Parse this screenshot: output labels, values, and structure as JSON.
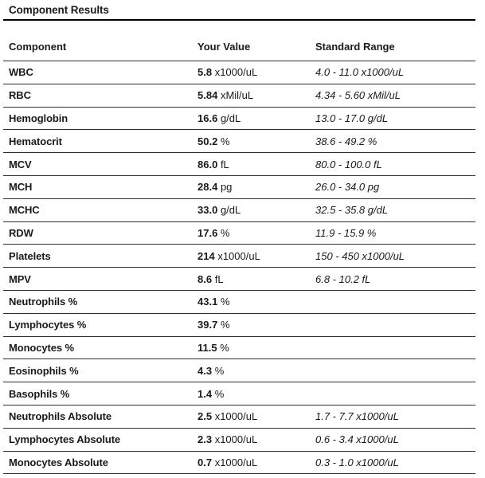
{
  "page_title": "Component Results",
  "table": {
    "columns": [
      "Component",
      "Your Value",
      "Standard Range"
    ],
    "rows": [
      {
        "component": "WBC",
        "value": "5.8",
        "unit": "x1000/uL",
        "range": "4.0 - 11.0 x1000/uL"
      },
      {
        "component": "RBC",
        "value": "5.84",
        "unit": "xMil/uL",
        "range": "4.34 - 5.60 xMil/uL"
      },
      {
        "component": "Hemoglobin",
        "value": "16.6",
        "unit": "g/dL",
        "range": "13.0 - 17.0 g/dL"
      },
      {
        "component": "Hematocrit",
        "value": "50.2",
        "unit": "%",
        "range": "38.6 - 49.2 %"
      },
      {
        "component": "MCV",
        "value": "86.0",
        "unit": "fL",
        "range": "80.0 - 100.0 fL"
      },
      {
        "component": "MCH",
        "value": "28.4",
        "unit": "pg",
        "range": "26.0 - 34.0 pg"
      },
      {
        "component": "MCHC",
        "value": "33.0",
        "unit": "g/dL",
        "range": "32.5 - 35.8 g/dL"
      },
      {
        "component": "RDW",
        "value": "17.6",
        "unit": "%",
        "range": "11.9 - 15.9 %"
      },
      {
        "component": "Platelets",
        "value": "214",
        "unit": "x1000/uL",
        "range": "150 - 450 x1000/uL"
      },
      {
        "component": "MPV",
        "value": "8.6",
        "unit": "fL",
        "range": "6.8 - 10.2 fL"
      },
      {
        "component": "Neutrophils %",
        "value": "43.1",
        "unit": "%",
        "range": ""
      },
      {
        "component": "Lymphocytes %",
        "value": "39.7",
        "unit": "%",
        "range": ""
      },
      {
        "component": "Monocytes %",
        "value": "11.5",
        "unit": "%",
        "range": ""
      },
      {
        "component": "Eosinophils %",
        "value": "4.3",
        "unit": "%",
        "range": ""
      },
      {
        "component": "Basophils %",
        "value": "1.4",
        "unit": "%",
        "range": ""
      },
      {
        "component": "Neutrophils Absolute",
        "value": "2.5",
        "unit": "x1000/uL",
        "range": "1.7 - 7.7 x1000/uL"
      },
      {
        "component": "Lymphocytes Absolute",
        "value": "2.3",
        "unit": "x1000/uL",
        "range": "0.6 - 3.4 x1000/uL"
      },
      {
        "component": "Monocytes Absolute",
        "value": "0.7",
        "unit": "x1000/uL",
        "range": "0.3 - 1.0 x1000/uL"
      }
    ]
  },
  "colors": {
    "text": "#1a1a1a",
    "rule_heavy": "#000000",
    "rule_light": "#2f2f2f",
    "background": "#ffffff"
  }
}
